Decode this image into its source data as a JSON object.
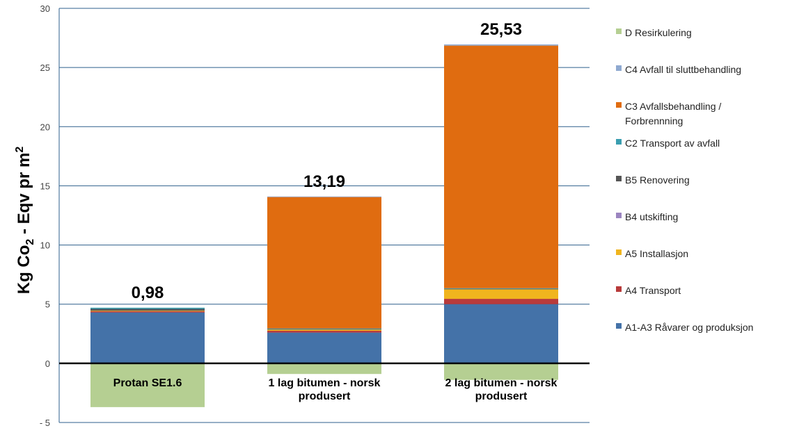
{
  "chart_data": {
    "type": "bar",
    "stacked": true,
    "ylabel": "Kg Co2 - Eqv pr m2",
    "ylabel_parts": {
      "pre": "Kg Co",
      "sub": "2",
      "mid": " - Eqv pr m",
      "sup": "2"
    },
    "ylim": [
      -5,
      30
    ],
    "yticks": [
      {
        "value": -5,
        "label": "- 5"
      },
      {
        "value": 0,
        "label": "0"
      },
      {
        "value": 5,
        "label": "5"
      },
      {
        "value": 10,
        "label": "10"
      },
      {
        "value": 15,
        "label": "15"
      },
      {
        "value": 20,
        "label": "20"
      },
      {
        "value": 25,
        "label": "25"
      },
      {
        "value": 30,
        "label": "30"
      }
    ],
    "grid": true,
    "legend_position": "right",
    "categories": [
      {
        "lines": [
          "Protan SE1.6"
        ]
      },
      {
        "lines": [
          "1 lag bitumen - norsk",
          "produsert"
        ]
      },
      {
        "lines": [
          "2 lag bitumen - norsk",
          "produsert"
        ]
      }
    ],
    "totals": [
      "0,98",
      "13,19",
      "25,53"
    ],
    "series": [
      {
        "name": "A1-A3 Råvarer og produksjon",
        "color": "#4472a8",
        "values": [
          4.3,
          2.6,
          5.0
        ]
      },
      {
        "name": "A4 Transport",
        "color": "#b83a3a",
        "values": [
          0.1,
          0.15,
          0.45
        ]
      },
      {
        "name": "A5 Installasjon",
        "color": "#f0b51e",
        "values": [
          0.05,
          0.1,
          0.8
        ]
      },
      {
        "name": "B4 utskifting",
        "color": "#9b85c0",
        "values": [
          0.0,
          0.0,
          0.0
        ]
      },
      {
        "name": "B5 Renovering",
        "color": "#555555",
        "values": [
          0.15,
          0.05,
          0.05
        ]
      },
      {
        "name": "C2 Transport av avfall",
        "color": "#3a9eb0",
        "values": [
          0.1,
          0.05,
          0.05
        ]
      },
      {
        "name": "C3 Avfallsbehandling  / Forbrennning",
        "color": "#e06c10",
        "values": [
          0.0,
          11.1,
          20.5
        ]
      },
      {
        "name": "C4 Avfall til sluttbehandling",
        "color": "#8fa9d0",
        "values": [
          0.0,
          0.05,
          0.1
        ]
      },
      {
        "name": "D Resirkulering",
        "color": "#b5cf92",
        "values": [
          -3.7,
          -0.9,
          -1.4
        ]
      }
    ],
    "legend_lines": [
      {
        "series": 8,
        "lines": [
          "D Resirkulering"
        ]
      },
      {
        "series": 7,
        "lines": [
          "C4 Avfall til sluttbehandling"
        ]
      },
      {
        "series": 6,
        "lines": [
          "C3 Avfallsbehandling  /",
          "Forbrennning"
        ]
      },
      {
        "series": 5,
        "lines": [
          "C2 Transport av avfall"
        ]
      },
      {
        "series": 4,
        "lines": [
          "B5 Renovering"
        ]
      },
      {
        "series": 3,
        "lines": [
          "B4 utskifting"
        ]
      },
      {
        "series": 2,
        "lines": [
          "A5 Installasjon"
        ]
      },
      {
        "series": 1,
        "lines": [
          "A4 Transport"
        ]
      },
      {
        "series": 0,
        "lines": [
          "A1-A3 Råvarer og produksjon"
        ]
      }
    ]
  }
}
